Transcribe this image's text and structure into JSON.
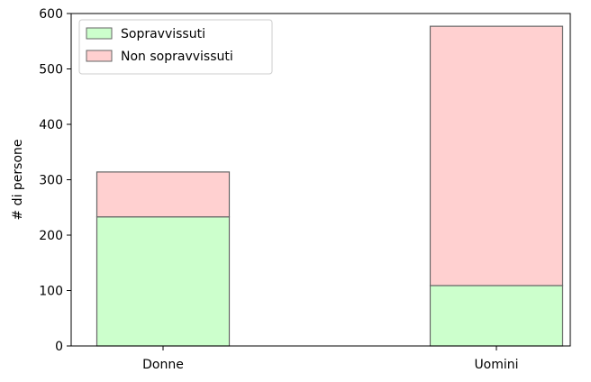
{
  "chart_data": {
    "type": "bar",
    "stacked": true,
    "categories": [
      "Donne",
      "Uomini"
    ],
    "series": [
      {
        "name": "Sopravvissuti",
        "values": [
          233,
          109
        ],
        "color": "#ccffcc"
      },
      {
        "name": "Non sopravvissuti",
        "values": [
          81,
          468
        ],
        "color": "#ffd0d0"
      }
    ],
    "xlabel": "",
    "ylabel": "# di persone",
    "ylim": [
      0,
      600
    ],
    "yticks": [
      0,
      100,
      200,
      300,
      400,
      500,
      600
    ],
    "grid": false,
    "legend_position": "top-left",
    "bar_edge_color": "#666666",
    "axis_color": "#000000"
  }
}
